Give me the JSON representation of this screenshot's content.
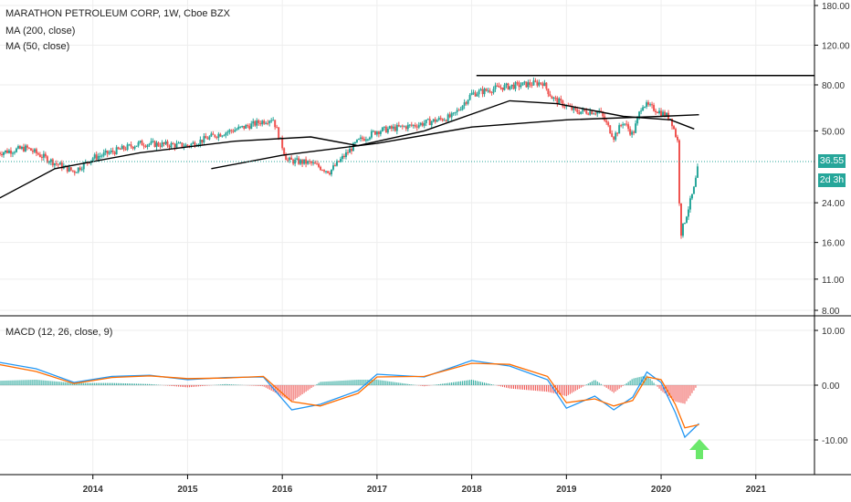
{
  "header": {
    "title": "MARATHON PETROLEUM CORP, 1W, Cboe BZX",
    "ma200_label": "MA (200, close)",
    "ma50_label": "MA (50, close)"
  },
  "macd": {
    "label": "MACD (12, 26, close, 9)"
  },
  "price_tag": {
    "value": "36.55",
    "countdown": "2d 3h"
  },
  "colors": {
    "up": "#26a69a",
    "down": "#ef5350",
    "ma": "#000000",
    "macd_line": "#2196f3",
    "signal_line": "#ff6d00",
    "arrow": "#6be86b"
  },
  "chart_data": [
    {
      "type": "candlestick",
      "title": "MARATHON PETROLEUM CORP, 1W, Cboe BZX",
      "x_ticks": [
        "2014",
        "2015",
        "2016",
        "2017",
        "2018",
        "2019",
        "2020",
        "2021"
      ],
      "y_scale": "log",
      "y_ticks": [
        "180.00",
        "120.00",
        "80.00",
        "50.00",
        "24.00",
        "16.00",
        "11.00",
        "8.00"
      ],
      "last_price": 36.55,
      "series": [
        {
          "name": "MA (200, close)",
          "points": [
            [
              2013.0,
              25
            ],
            [
              2013.6,
              34
            ],
            [
              2014.5,
              40
            ],
            [
              2015.5,
              45
            ],
            [
              2016.3,
              47
            ],
            [
              2016.8,
              43
            ],
            [
              2017.5,
              50
            ],
            [
              2018.4,
              68
            ],
            [
              2018.9,
              66
            ],
            [
              2019.6,
              58
            ],
            [
              2020.1,
              56
            ],
            [
              2020.35,
              51
            ]
          ]
        },
        {
          "name": "MA (50, close)",
          "points": [
            [
              2015.25,
              34
            ],
            [
              2016.0,
              39
            ],
            [
              2017.0,
              44
            ],
            [
              2018.0,
              52
            ],
            [
              2019.0,
              56
            ],
            [
              2020.0,
              58
            ],
            [
              2020.4,
              59
            ]
          ]
        }
      ],
      "price_path": [
        [
          2013.0,
          40
        ],
        [
          2013.3,
          42
        ],
        [
          2013.6,
          36
        ],
        [
          2013.8,
          33
        ],
        [
          2014.0,
          38
        ],
        [
          2014.5,
          44
        ],
        [
          2015.0,
          43
        ],
        [
          2015.3,
          48
        ],
        [
          2015.6,
          52
        ],
        [
          2015.9,
          57
        ],
        [
          2016.05,
          37
        ],
        [
          2016.3,
          36
        ],
        [
          2016.5,
          33
        ],
        [
          2016.8,
          45
        ],
        [
          2017.0,
          50
        ],
        [
          2017.4,
          53
        ],
        [
          2017.8,
          58
        ],
        [
          2018.0,
          73
        ],
        [
          2018.3,
          78
        ],
        [
          2018.75,
          82
        ],
        [
          2018.85,
          70
        ],
        [
          2019.1,
          61
        ],
        [
          2019.35,
          61
        ],
        [
          2019.5,
          47
        ],
        [
          2019.6,
          55
        ],
        [
          2019.7,
          48
        ],
        [
          2019.8,
          66
        ],
        [
          2019.95,
          62
        ],
        [
          2020.1,
          57
        ],
        [
          2020.18,
          44
        ],
        [
          2020.2,
          17
        ],
        [
          2020.25,
          20
        ],
        [
          2020.35,
          28
        ],
        [
          2020.4,
          36.55
        ]
      ],
      "resistance_level": 88
    },
    {
      "type": "line",
      "title": "MACD (12, 26, close, 9)",
      "y_ticks": [
        "10.00",
        "0.00",
        "-10.00"
      ],
      "series": [
        {
          "name": "MACD",
          "points": [
            [
              2013.0,
              4.2
            ],
            [
              2013.4,
              3
            ],
            [
              2013.8,
              0.5
            ],
            [
              2014.2,
              1.6
            ],
            [
              2014.6,
              1.8
            ],
            [
              2015.0,
              1
            ],
            [
              2015.4,
              1.4
            ],
            [
              2015.8,
              1.5
            ],
            [
              2016.1,
              -4.5
            ],
            [
              2016.4,
              -3.5
            ],
            [
              2016.8,
              -1
            ],
            [
              2017.0,
              2
            ],
            [
              2017.5,
              1.5
            ],
            [
              2018.0,
              4.5
            ],
            [
              2018.4,
              3.5
            ],
            [
              2018.8,
              1
            ],
            [
              2019.0,
              -4.2
            ],
            [
              2019.3,
              -2
            ],
            [
              2019.5,
              -4.5
            ],
            [
              2019.7,
              -2.2
            ],
            [
              2019.85,
              2.4
            ],
            [
              2020.0,
              0.5
            ],
            [
              2020.15,
              -5
            ],
            [
              2020.25,
              -9.5
            ],
            [
              2020.4,
              -7
            ]
          ]
        },
        {
          "name": "Signal",
          "points": [
            [
              2013.0,
              3.8
            ],
            [
              2013.4,
              2.5
            ],
            [
              2013.8,
              0.3
            ],
            [
              2014.2,
              1.4
            ],
            [
              2014.6,
              1.7
            ],
            [
              2015.0,
              1.2
            ],
            [
              2015.4,
              1.3
            ],
            [
              2015.8,
              1.6
            ],
            [
              2016.1,
              -3
            ],
            [
              2016.4,
              -3.8
            ],
            [
              2016.8,
              -1.5
            ],
            [
              2017.0,
              1.5
            ],
            [
              2017.5,
              1.6
            ],
            [
              2018.0,
              4
            ],
            [
              2018.4,
              3.8
            ],
            [
              2018.8,
              1.6
            ],
            [
              2019.0,
              -3.2
            ],
            [
              2019.3,
              -2.5
            ],
            [
              2019.5,
              -3.8
            ],
            [
              2019.7,
              -2.8
            ],
            [
              2019.85,
              1.5
            ],
            [
              2020.0,
              1
            ],
            [
              2020.15,
              -3.5
            ],
            [
              2020.25,
              -7.8
            ],
            [
              2020.4,
              -7.2
            ]
          ]
        }
      ]
    }
  ]
}
